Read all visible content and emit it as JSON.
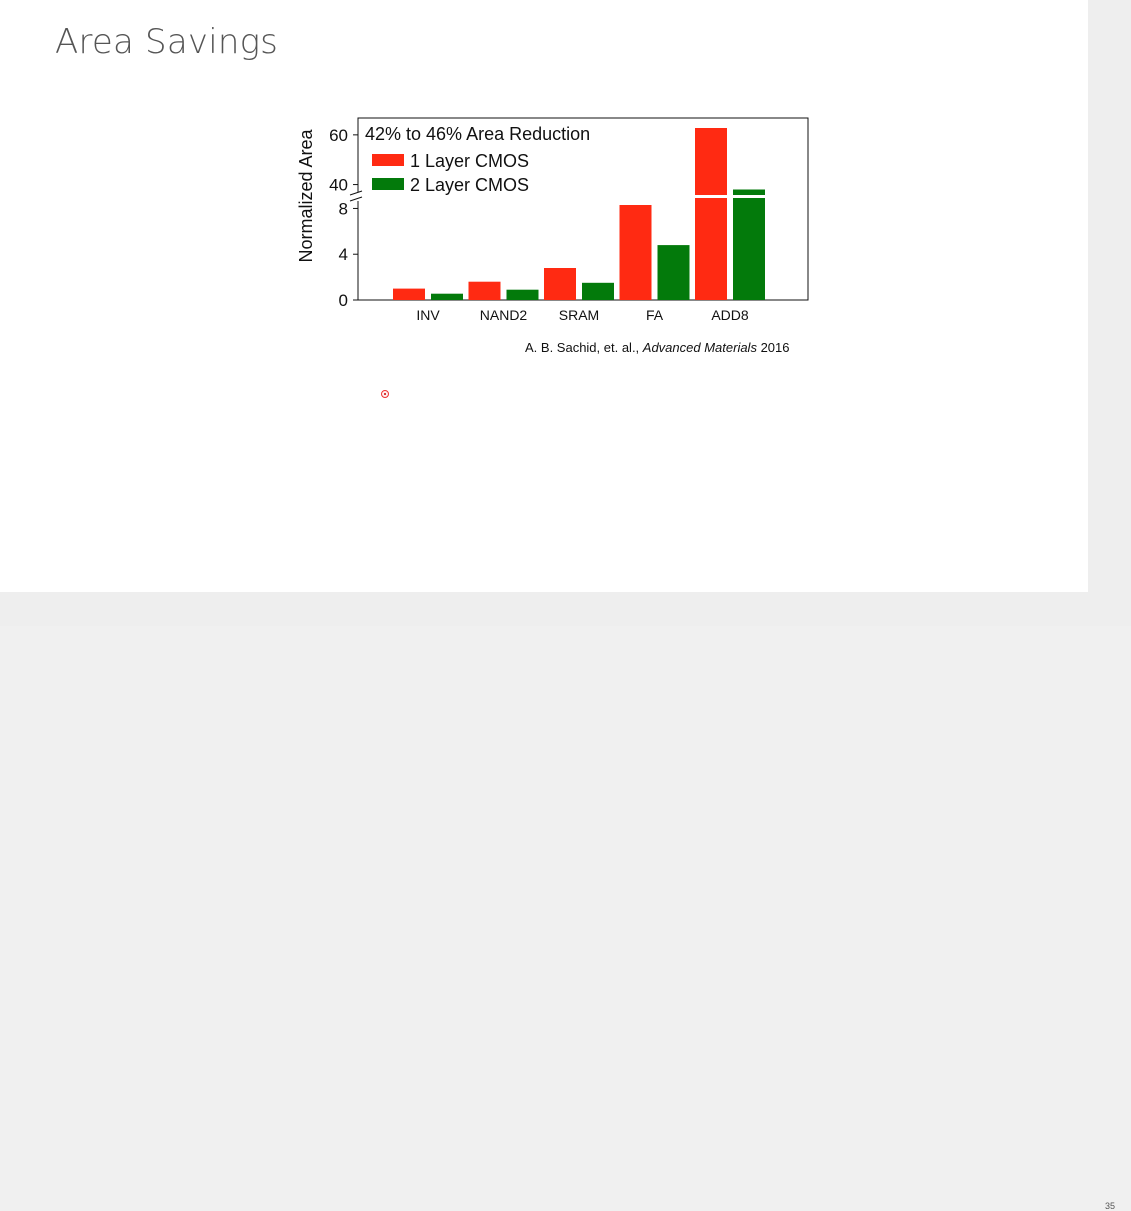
{
  "slide": {
    "title": "Area Savings",
    "page_number": "35",
    "citation_authors": "A. B. Sachid, et. al., ",
    "citation_journal": "Advanced Materials",
    "citation_year": " 2016"
  },
  "colors": {
    "one_layer": "#ff2a12",
    "two_layer": "#037a0b"
  },
  "chart_data": {
    "type": "bar",
    "title": "",
    "annotation": "42% to 46% Area Reduction",
    "xlabel": "",
    "ylabel": "Normalized Area",
    "categories": [
      "INV",
      "NAND2",
      "SRAM",
      "FA",
      "ADD8"
    ],
    "series": [
      {
        "name": "1 Layer CMOS",
        "values": [
          1.0,
          1.6,
          2.8,
          8.3,
          67
        ]
      },
      {
        "name": "2 Layer CMOS",
        "values": [
          0.55,
          0.9,
          1.5,
          4.8,
          38
        ]
      }
    ],
    "axis_break": {
      "lower": [
        0,
        9
      ],
      "upper": [
        35,
        70
      ]
    },
    "yticks_lower": [
      "0",
      "4",
      "8"
    ],
    "yticks_upper": [
      "40",
      "60"
    ],
    "legend_position": "top-left",
    "grid": false
  }
}
